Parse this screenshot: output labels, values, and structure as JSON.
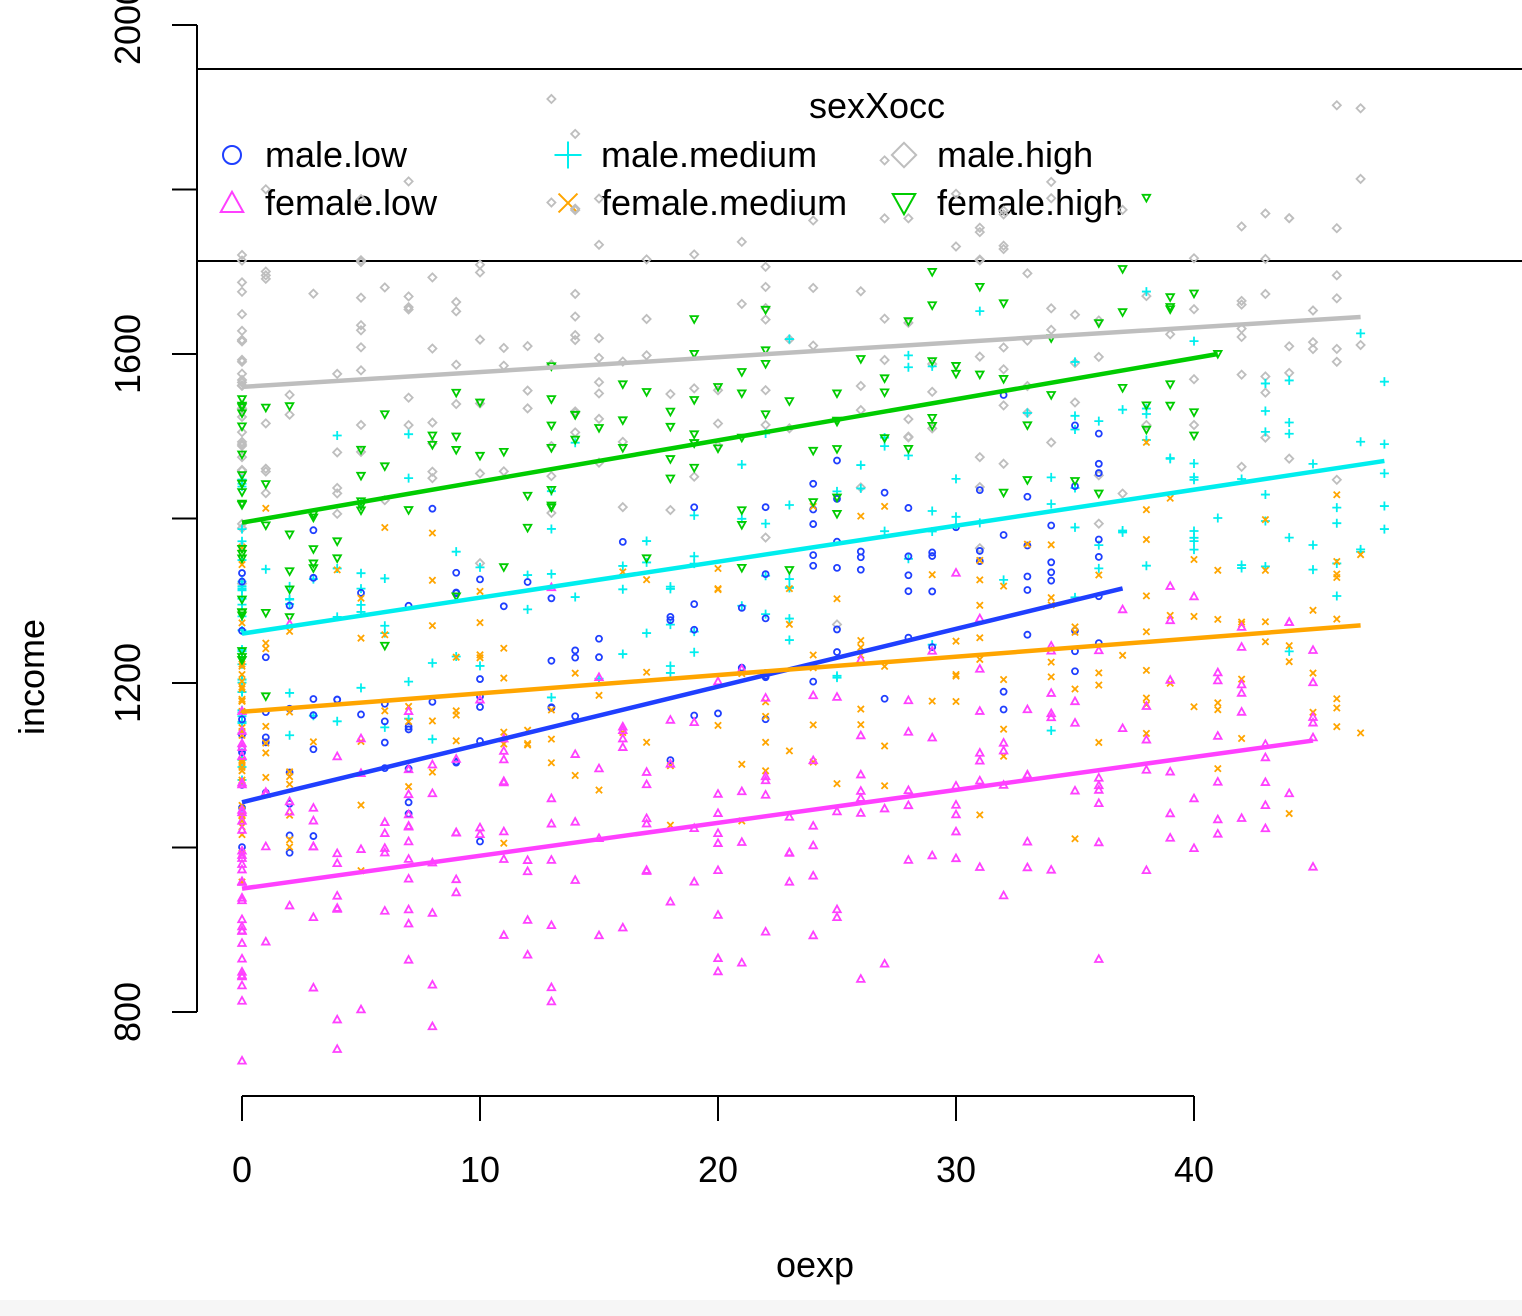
{
  "chart_data": {
    "type": "scatter",
    "xlabel": "oexp",
    "ylabel": "income",
    "xlim": [
      0,
      48
    ],
    "ylim": [
      700,
      2100
    ],
    "xticks": [
      0,
      10,
      20,
      30,
      40
    ],
    "yticks": [
      800,
      1200,
      1600,
      2000
    ],
    "grid": false,
    "legend": {
      "title": "sexXocc",
      "placement": "top",
      "entries": [
        "male.low",
        "female.low",
        "male.medium",
        "female.medium",
        "male.high",
        "female.high"
      ]
    },
    "series": [
      {
        "name": "male.low",
        "color": "#1f3fff",
        "marker": "circle",
        "fit": {
          "x": [
            0,
            37
          ],
          "y": [
            1055,
            1315
          ]
        },
        "n": 140,
        "y_mean": 1130,
        "y_spread": 130,
        "y_slope": 7,
        "x_max": 37
      },
      {
        "name": "female.low",
        "color": "#ff40ff",
        "marker": "triangle-up",
        "fit": {
          "x": [
            0,
            45
          ],
          "y": [
            950,
            1130
          ]
        },
        "n": 260,
        "y_mean": 975,
        "y_spread": 140,
        "y_slope": 4,
        "x_max": 45
      },
      {
        "name": "male.medium",
        "color": "#00eeee",
        "marker": "plus",
        "fit": {
          "x": [
            0,
            48
          ],
          "y": [
            1260,
            1470
          ]
        },
        "n": 190,
        "y_mean": 1260,
        "y_spread": 150,
        "y_slope": 4.4,
        "x_max": 48
      },
      {
        "name": "female.medium",
        "color": "#ffa500",
        "marker": "cross",
        "fit": {
          "x": [
            0,
            47
          ],
          "y": [
            1165,
            1270
          ]
        },
        "n": 200,
        "y_mean": 1165,
        "y_spread": 140,
        "y_slope": 2.2,
        "x_max": 47
      },
      {
        "name": "male.high",
        "color": "#bebebe",
        "marker": "diamond",
        "fit": {
          "x": [
            0,
            47
          ],
          "y": [
            1560,
            1645
          ]
        },
        "n": 230,
        "y_mean": 1560,
        "y_spread": 160,
        "y_slope": 1.8,
        "x_max": 47
      },
      {
        "name": "female.high",
        "color": "#00cc00",
        "marker": "triangle-down",
        "fit": {
          "x": [
            0,
            41
          ],
          "y": [
            1395,
            1600
          ]
        },
        "n": 150,
        "y_mean": 1395,
        "y_spread": 120,
        "y_slope": 5,
        "x_max": 41
      }
    ]
  }
}
